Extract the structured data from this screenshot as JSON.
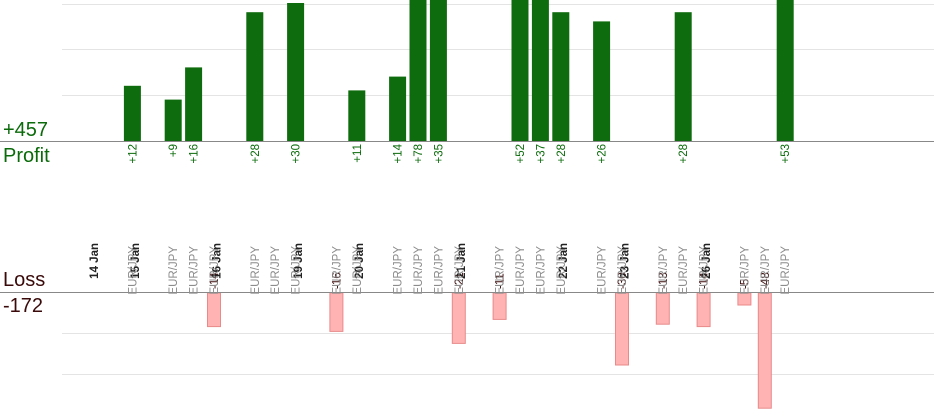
{
  "summary": {
    "profit_total": "+457",
    "profit_label": "Profit",
    "loss_label": "Loss",
    "loss_total": "-172"
  },
  "colors": {
    "profit_bar": "#0e6b0e",
    "profit_text": "#0b6b0b",
    "loss_bar": "#ffb3b3",
    "loss_bar_edge": "#e88a8a",
    "loss_text": "#3a0a0a",
    "grid": "#e4e4e4",
    "axis": "#888888",
    "date_text": "#222222",
    "pair_text": "#8c8c8c"
  },
  "chart_data": {
    "type": "bar",
    "title": "",
    "grid": true,
    "dates": [
      "14 Jan",
      "15 Jan",
      "16 Jan",
      "19 Jan",
      "20 Jan",
      "21 Jan",
      "22 Jan",
      "23 Jan",
      "26 Jan"
    ],
    "trades": [
      {
        "date": "14 Jan",
        "pair": "EUR/JPY",
        "value": 12,
        "label": "+12"
      },
      {
        "date": "15 Jan",
        "pair": "EUR/JPY",
        "value": 9,
        "label": "+9"
      },
      {
        "date": "15 Jan",
        "pair": "EUR/JPY",
        "value": 16,
        "label": "+16"
      },
      {
        "date": "15 Jan",
        "pair": "EUR/JPY",
        "value": -14,
        "label": "-14"
      },
      {
        "date": "16 Jan",
        "pair": "EUR/JPY",
        "value": 28,
        "label": "+28"
      },
      {
        "date": "16 Jan",
        "pair": "EUR/JPY",
        "value": 0,
        "label": ""
      },
      {
        "date": "16 Jan",
        "pair": "EUR/JPY",
        "value": 30,
        "label": "+30"
      },
      {
        "date": "19 Jan",
        "pair": "EUR/JPY",
        "value": -16,
        "label": "-16"
      },
      {
        "date": "19 Jan",
        "pair": "EUR/JPY",
        "value": 11,
        "label": "+11"
      },
      {
        "date": "20 Jan",
        "pair": "EUR/JPY",
        "value": 14,
        "label": "+14"
      },
      {
        "date": "20 Jan",
        "pair": "EUR/JPY",
        "value": 78,
        "label": "+78"
      },
      {
        "date": "20 Jan",
        "pair": "EUR/JPY",
        "value": 35,
        "label": "+35"
      },
      {
        "date": "20 Jan",
        "pair": "EUR/JPY",
        "value": -21,
        "label": "-21"
      },
      {
        "date": "21 Jan",
        "pair": "EUR/JPY",
        "value": -11,
        "label": "-11"
      },
      {
        "date": "21 Jan",
        "pair": "EUR/JPY",
        "value": 52,
        "label": "+52"
      },
      {
        "date": "21 Jan",
        "pair": "EUR/JPY",
        "value": 37,
        "label": "+37"
      },
      {
        "date": "21 Jan",
        "pair": "EUR/JPY",
        "value": 28,
        "label": "+28"
      },
      {
        "date": "22 Jan",
        "pair": "EUR/JPY",
        "value": 26,
        "label": "+26"
      },
      {
        "date": "22 Jan",
        "pair": "EUR/JPY",
        "value": -30,
        "label": "-30"
      },
      {
        "date": "23 Jan",
        "pair": "EUR/JPY",
        "value": -13,
        "label": "-13"
      },
      {
        "date": "23 Jan",
        "pair": "EUR/JPY",
        "value": 28,
        "label": "+28"
      },
      {
        "date": "23 Jan",
        "pair": "EUR/JPY",
        "value": -14,
        "label": "-14"
      },
      {
        "date": "26 Jan",
        "pair": "EUR/JPY",
        "value": -5,
        "label": "-5"
      },
      {
        "date": "26 Jan",
        "pair": "EUR/JPY",
        "value": -48,
        "label": "-48"
      },
      {
        "date": "26 Jan",
        "pair": "EUR/JPY",
        "value": 53,
        "label": "+53"
      }
    ]
  }
}
